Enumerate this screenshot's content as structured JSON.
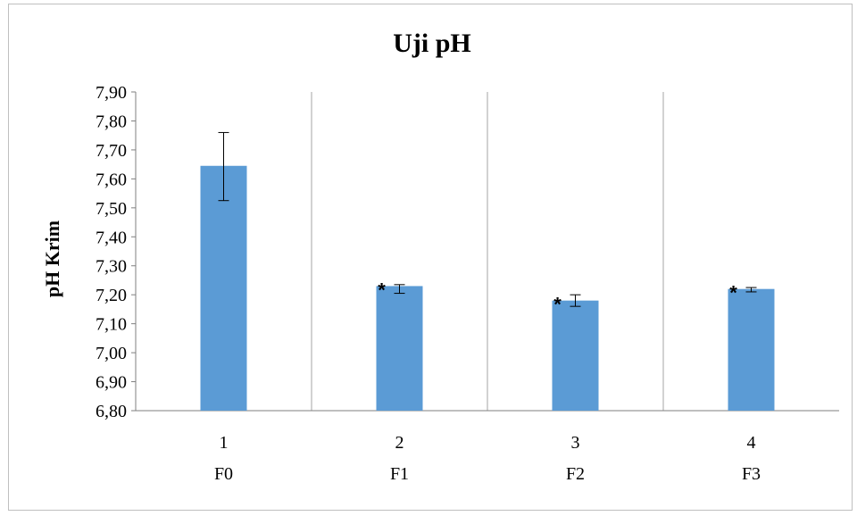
{
  "chart_data": {
    "type": "bar",
    "title": "Uji pH",
    "xlabel": "",
    "ylabel": "pH Krim",
    "ylim": [
      6.8,
      7.9
    ],
    "y_ticks": [
      "6,80",
      "6,90",
      "7,00",
      "7,10",
      "7,20",
      "7,30",
      "7,40",
      "7,50",
      "7,60",
      "7,70",
      "7,80",
      "7,90"
    ],
    "categories": [
      "1",
      "2",
      "3",
      "4"
    ],
    "group_labels": [
      "F0",
      "F1",
      "F2",
      "F3"
    ],
    "values": [
      7.645,
      7.23,
      7.18,
      7.22
    ],
    "error_low": [
      7.525,
      7.205,
      7.16,
      7.21
    ],
    "error_high": [
      7.76,
      7.235,
      7.2,
      7.225
    ],
    "significance_marks": [
      "",
      "*",
      "*",
      "*"
    ],
    "bar_color": "#5b9bd5",
    "grid": "vertical separators between categories"
  }
}
